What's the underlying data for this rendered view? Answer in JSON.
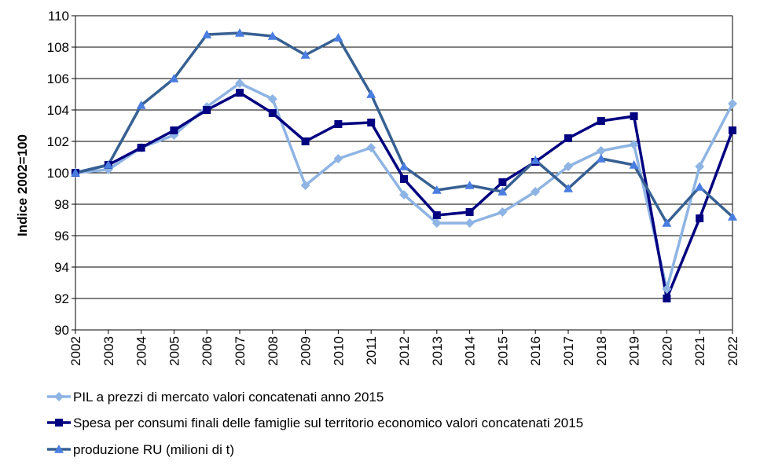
{
  "chart_data": {
    "type": "line",
    "title": "",
    "xlabel": "",
    "ylabel": "Indice  2002=100",
    "ylim": [
      90,
      110
    ],
    "y_ticks": [
      90,
      92,
      94,
      96,
      98,
      100,
      102,
      104,
      106,
      108,
      110
    ],
    "grid": "horizontal",
    "legend_position": "bottom",
    "categories": [
      "2002",
      "2003",
      "2004",
      "2005",
      "2006",
      "2007",
      "2008",
      "2009",
      "2010",
      "2011",
      "2012",
      "2013",
      "2014",
      "2015",
      "2016",
      "2017",
      "2018",
      "2019",
      "2020",
      "2021",
      "2022"
    ],
    "series": [
      {
        "name": "PIL a prezzi di mercato valori concatenati anno 2015",
        "marker": "diamond",
        "color": "#8EB4E3",
        "values": [
          100.0,
          100.2,
          101.6,
          102.4,
          104.2,
          105.7,
          104.7,
          99.2,
          100.9,
          101.6,
          98.6,
          96.8,
          96.8,
          97.5,
          98.8,
          100.4,
          101.4,
          101.8,
          92.6,
          100.4,
          104.4
        ]
      },
      {
        "name": "Spesa per consumi finali delle famiglie sul territorio economico valori concatenati 2015",
        "marker": "square",
        "color": "#000080",
        "values": [
          100.0,
          100.5,
          101.6,
          102.7,
          104.0,
          105.1,
          103.8,
          102.0,
          103.1,
          103.2,
          99.6,
          97.3,
          97.5,
          99.4,
          100.7,
          102.2,
          103.3,
          103.6,
          92.0,
          97.1,
          102.7
        ]
      },
      {
        "name": "produzione RU (milioni di t)",
        "marker": "triangle",
        "color": "#376092",
        "marker_color": "#4A7DE0",
        "values": [
          100.0,
          100.5,
          104.3,
          106.0,
          108.8,
          108.9,
          108.7,
          107.5,
          108.6,
          105.0,
          100.4,
          98.9,
          99.2,
          98.8,
          100.8,
          99.0,
          100.9,
          100.5,
          96.8,
          99.1,
          97.2
        ]
      }
    ]
  }
}
